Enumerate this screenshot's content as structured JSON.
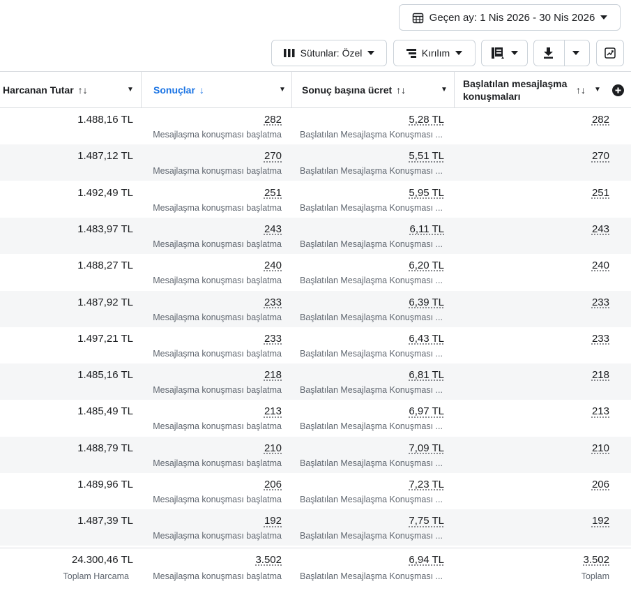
{
  "toolbar": {
    "date_range": "Geçen ay: 1 Nis 2026 - 30 Nis 2026",
    "columns_label": "Sütunlar: Özel",
    "breakdown_label": "Kırılım"
  },
  "table": {
    "headers": {
      "amount_spent": "Harcanan Tutar",
      "results": "Sonuçlar",
      "cost_per_result": "Sonuç başına ücret",
      "conversations_line1": "Başlatılan mesajlaşma",
      "conversations_line2": "konuşmaları"
    },
    "accent_color": "#1b74e4",
    "rows": [
      {
        "amount": "1.488,16 TL",
        "results": "282",
        "results_sub": "Mesajlaşma konuşması başlatma",
        "cpr": "5,28 TL",
        "cpr_sub": "Başlatılan Mesajlaşma Konuşması ...",
        "conversations": "282"
      },
      {
        "amount": "1.487,12 TL",
        "results": "270",
        "results_sub": "Mesajlaşma konuşması başlatma",
        "cpr": "5,51 TL",
        "cpr_sub": "Başlatılan Mesajlaşma Konuşması ...",
        "conversations": "270"
      },
      {
        "amount": "1.492,49 TL",
        "results": "251",
        "results_sub": "Mesajlaşma konuşması başlatma",
        "cpr": "5,95 TL",
        "cpr_sub": "Başlatılan Mesajlaşma Konuşması ...",
        "conversations": "251"
      },
      {
        "amount": "1.483,97 TL",
        "results": "243",
        "results_sub": "Mesajlaşma konuşması başlatma",
        "cpr": "6,11 TL",
        "cpr_sub": "Başlatılan Mesajlaşma Konuşması ...",
        "conversations": "243"
      },
      {
        "amount": "1.488,27 TL",
        "results": "240",
        "results_sub": "Mesajlaşma konuşması başlatma",
        "cpr": "6,20 TL",
        "cpr_sub": "Başlatılan Mesajlaşma Konuşması ...",
        "conversations": "240"
      },
      {
        "amount": "1.487,92 TL",
        "results": "233",
        "results_sub": "Mesajlaşma konuşması başlatma",
        "cpr": "6,39 TL",
        "cpr_sub": "Başlatılan Mesajlaşma Konuşması ...",
        "conversations": "233"
      },
      {
        "amount": "1.497,21 TL",
        "results": "233",
        "results_sub": "Mesajlaşma konuşması başlatma",
        "cpr": "6,43 TL",
        "cpr_sub": "Başlatılan Mesajlaşma Konuşması ...",
        "conversations": "233"
      },
      {
        "amount": "1.485,16 TL",
        "results": "218",
        "results_sub": "Mesajlaşma konuşması başlatma",
        "cpr": "6,81 TL",
        "cpr_sub": "Başlatılan Mesajlaşma Konuşması ...",
        "conversations": "218"
      },
      {
        "amount": "1.485,49 TL",
        "results": "213",
        "results_sub": "Mesajlaşma konuşması başlatma",
        "cpr": "6,97 TL",
        "cpr_sub": "Başlatılan Mesajlaşma Konuşması ...",
        "conversations": "213"
      },
      {
        "amount": "1.488,79 TL",
        "results": "210",
        "results_sub": "Mesajlaşma konuşması başlatma",
        "cpr": "7,09 TL",
        "cpr_sub": "Başlatılan Mesajlaşma Konuşması ...",
        "conversations": "210"
      },
      {
        "amount": "1.489,96 TL",
        "results": "206",
        "results_sub": "Mesajlaşma konuşması başlatma",
        "cpr": "7,23 TL",
        "cpr_sub": "Başlatılan Mesajlaşma Konuşması ...",
        "conversations": "206"
      },
      {
        "amount": "1.487,39 TL",
        "results": "192",
        "results_sub": "Mesajlaşma konuşması başlatma",
        "cpr": "7,75 TL",
        "cpr_sub": "Başlatılan Mesajlaşma Konuşması ...",
        "conversations": "192"
      }
    ],
    "totals": {
      "amount": "24.300,46 TL",
      "amount_sub": "Toplam Harcama",
      "results": "3.502",
      "results_sub": "Mesajlaşma konuşması başlatma",
      "cpr": "6,94 TL",
      "cpr_sub": "Başlatılan Mesajlaşma Konuşması ...",
      "conversations": "3.502",
      "conversations_sub": "Toplam"
    }
  }
}
